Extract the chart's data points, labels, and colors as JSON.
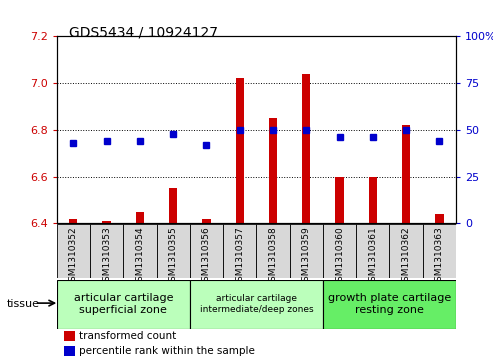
{
  "title": "GDS5434 / 10924127",
  "samples": [
    "GSM1310352",
    "GSM1310353",
    "GSM1310354",
    "GSM1310355",
    "GSM1310356",
    "GSM1310357",
    "GSM1310358",
    "GSM1310359",
    "GSM1310360",
    "GSM1310361",
    "GSM1310362",
    "GSM1310363"
  ],
  "transformed_count": [
    6.42,
    6.41,
    6.45,
    6.55,
    6.42,
    7.02,
    6.85,
    7.04,
    6.6,
    6.6,
    6.82,
    6.44
  ],
  "percentile_rank": [
    43,
    44,
    44,
    48,
    42,
    50,
    50,
    50,
    46,
    46,
    50,
    44
  ],
  "ylim_left": [
    6.4,
    7.2
  ],
  "ylim_right": [
    0,
    100
  ],
  "yticks_left": [
    6.4,
    6.6,
    6.8,
    7.0,
    7.2
  ],
  "yticks_right": [
    0,
    25,
    50,
    75,
    100
  ],
  "grid_values": [
    6.6,
    6.8,
    7.0
  ],
  "bar_color": "#cc0000",
  "dot_color": "#0000cc",
  "tissue_groups": [
    {
      "label": "articular cartilage\nsuperficial zone",
      "start": 0,
      "end": 4,
      "color": "#bbffbb",
      "fontsize": 8
    },
    {
      "label": "articular cartilage\nintermediate/deep zones",
      "start": 4,
      "end": 8,
      "color": "#bbffbb",
      "fontsize": 6.5
    },
    {
      "label": "growth plate cartilage\nresting zone",
      "start": 8,
      "end": 12,
      "color": "#66ee66",
      "fontsize": 8
    }
  ],
  "legend_items": [
    {
      "label": "transformed count",
      "color": "#cc0000"
    },
    {
      "label": "percentile rank within the sample",
      "color": "#0000cc"
    }
  ],
  "tissue_label": "tissue",
  "bar_width": 0.25,
  "base_value": 6.4,
  "dot_size": 4,
  "bg_color": "#d8d8d8",
  "plot_bg": "#ffffff"
}
